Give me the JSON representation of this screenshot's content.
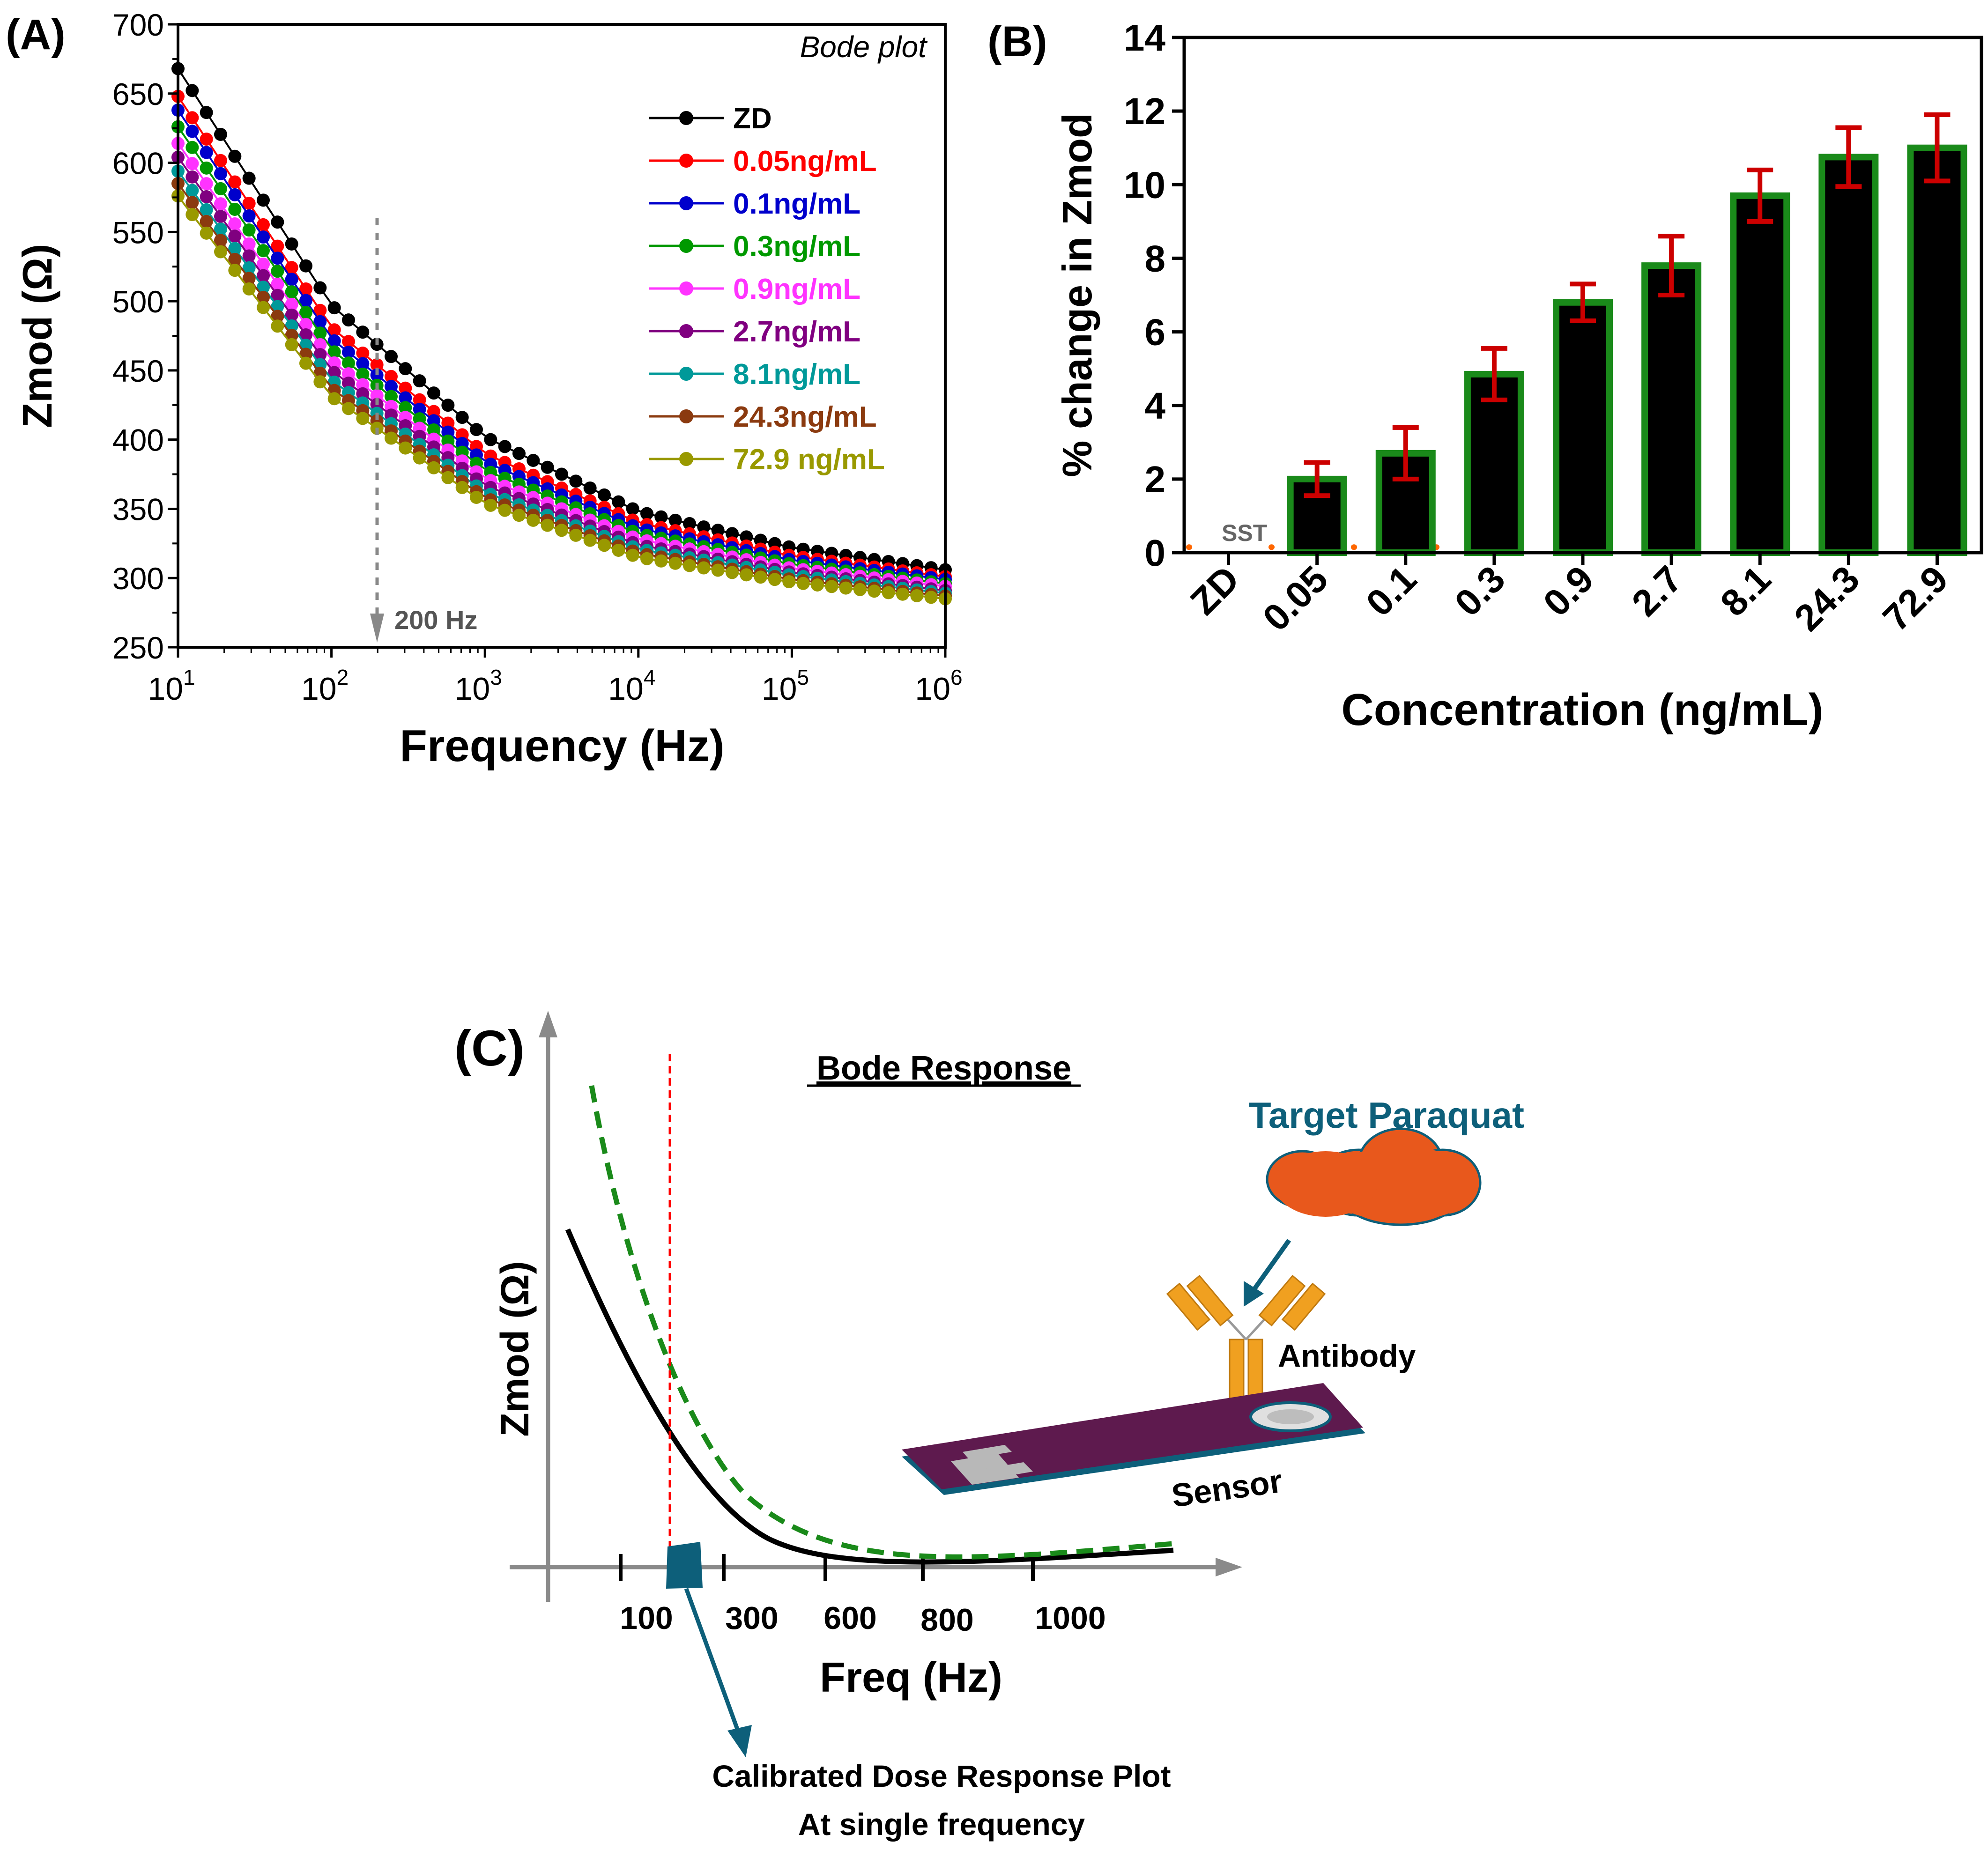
{
  "panel_a": {
    "label": "(A)",
    "annotation": "Bode plot",
    "marker_text": "200 Hz",
    "x_ticks": [
      {
        "base": "10",
        "exp": "1"
      },
      {
        "base": "10",
        "exp": "2"
      },
      {
        "base": "10",
        "exp": "3"
      },
      {
        "base": "10",
        "exp": "4"
      },
      {
        "base": "10",
        "exp": "5"
      },
      {
        "base": "10",
        "exp": "6"
      }
    ],
    "y_ticks": [
      "250",
      "300",
      "350",
      "400",
      "450",
      "500",
      "550",
      "600",
      "650",
      "700"
    ]
  },
  "panel_b": {
    "label": "(B)",
    "sst_label": "SST"
  },
  "panel_c": {
    "label": "(C)",
    "title": "Bode Response",
    "ylabel": "Zmod (Ω)",
    "xlabel": "Freq (Hz)",
    "x_ticks": [
      "100",
      "300",
      "600",
      "800",
      "1000"
    ],
    "target_label": "Target Paraquat",
    "antibody_label": "Antibody",
    "sensor_label": "Sensor",
    "callout_line1": "Calibrated Dose Response Plot",
    "callout_line2": "At single frequency"
  },
  "colors": {
    "ZD": "#000000",
    "c005": "#ff0000",
    "c01": "#0000cc",
    "c03": "#009900",
    "c09": "#ff33ff",
    "c27": "#800080",
    "c81": "#009999",
    "c243": "#8b3a0f",
    "c729": "#999900",
    "bar_fill": "#000000",
    "bar_edge": "#1a8a1a",
    "error": "#cc0000",
    "sst": "#ff6600",
    "teal": "#0d5f7a",
    "cloud": "#e8581c",
    "antibody": "#f0a020",
    "sensor": "#5e1a4e"
  },
  "chart_data": [
    {
      "type": "line",
      "title": "Bode plot",
      "xlabel": "Frequency (Hz)",
      "ylabel": "Zmod (Ω)",
      "xscale": "log",
      "xlim": [
        10,
        1000000
      ],
      "ylim": [
        250,
        700
      ],
      "legend_position": "top-right",
      "marker_frequency_hz": 200,
      "series": [
        {
          "name": "ZD",
          "values_at_decades": [
            668,
            497,
            402,
            348,
            322,
            306
          ]
        },
        {
          "name": "0.05ng/mL",
          "values_at_decades": [
            648,
            481,
            390,
            340,
            316,
            301
          ]
        },
        {
          "name": "0.1ng/mL",
          "values_at_decades": [
            638,
            473,
            384,
            336,
            313,
            299
          ]
        },
        {
          "name": "0.3ng/mL",
          "values_at_decades": [
            626,
            465,
            378,
            332,
            310,
            296
          ]
        },
        {
          "name": "0.9ng/mL",
          "values_at_decades": [
            614,
            457,
            372,
            328,
            307,
            294
          ]
        },
        {
          "name": "2.7ng/mL",
          "values_at_decades": [
            604,
            450,
            367,
            324,
            304,
            291
          ]
        },
        {
          "name": "8.1ng/mL",
          "values_at_decades": [
            594,
            443,
            362,
            321,
            302,
            289
          ]
        },
        {
          "name": "24.3ng/mL",
          "values_at_decades": [
            585,
            437,
            358,
            318,
            299,
            287
          ]
        },
        {
          "name": "72.9 ng/mL",
          "values_at_decades": [
            576,
            431,
            354,
            315,
            297,
            285
          ]
        }
      ]
    },
    {
      "type": "bar",
      "title": "",
      "xlabel": "Concentration (ng/mL)",
      "ylabel": "% change in Zmod",
      "ylim": [
        0,
        14
      ],
      "y_ticks": [
        0,
        2,
        4,
        6,
        8,
        10,
        12,
        14
      ],
      "categories": [
        "ZD",
        "0.05",
        "0.1",
        "0.3",
        "0.9",
        "2.7",
        "8.1",
        "24.3",
        "72.9"
      ],
      "values": [
        0,
        2.0,
        2.7,
        4.85,
        6.8,
        7.8,
        9.7,
        10.75,
        11.0
      ],
      "errors": [
        0,
        0.45,
        0.7,
        0.7,
        0.5,
        0.8,
        0.7,
        0.8,
        0.9
      ],
      "sst_level": 0.15
    }
  ]
}
